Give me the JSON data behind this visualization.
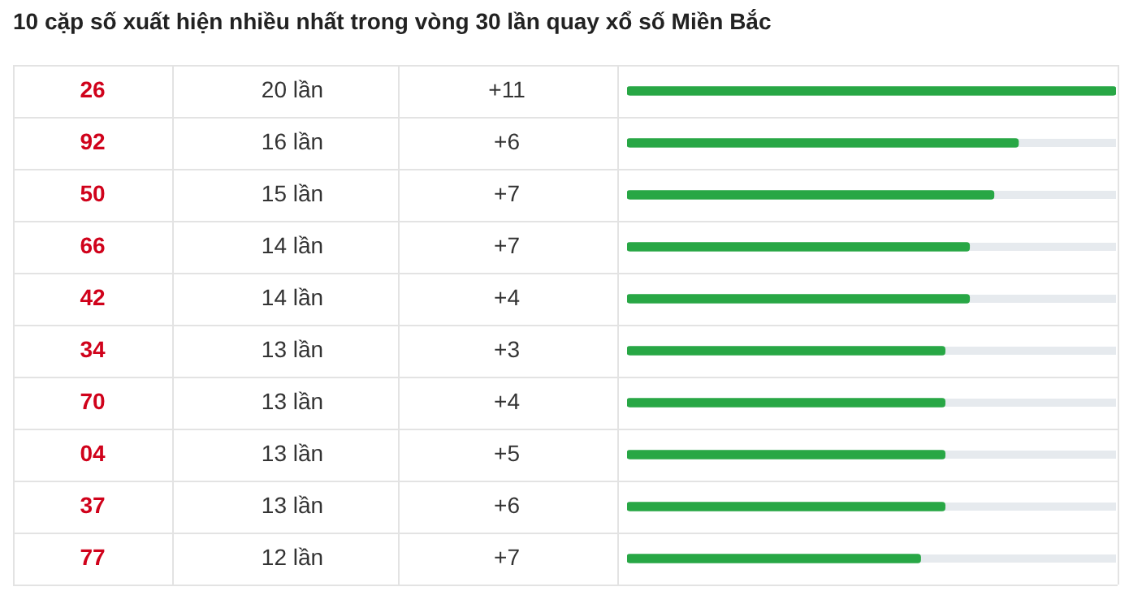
{
  "chart_data": {
    "type": "bar",
    "orientation": "horizontal",
    "title": "10 cặp số xuất hiện nhiều nhất trong vòng 30 lần quay xổ số Miền Bắc",
    "categories": [
      "26",
      "92",
      "50",
      "66",
      "42",
      "34",
      "70",
      "04",
      "37",
      "77"
    ],
    "values": [
      20,
      16,
      15,
      14,
      14,
      13,
      13,
      13,
      13,
      12
    ],
    "value_labels": [
      "20 lần",
      "16 lần",
      "15 lần",
      "14 lần",
      "14 lần",
      "13 lần",
      "13 lần",
      "13 lần",
      "13 lần",
      "12 lần"
    ],
    "color": "#28a745",
    "xlim": [
      0,
      20
    ],
    "annotations": [
      "+11",
      "+6",
      "+7",
      "+7",
      "+4",
      "+3",
      "+4",
      "+5",
      "+6",
      "+7"
    ]
  }
}
